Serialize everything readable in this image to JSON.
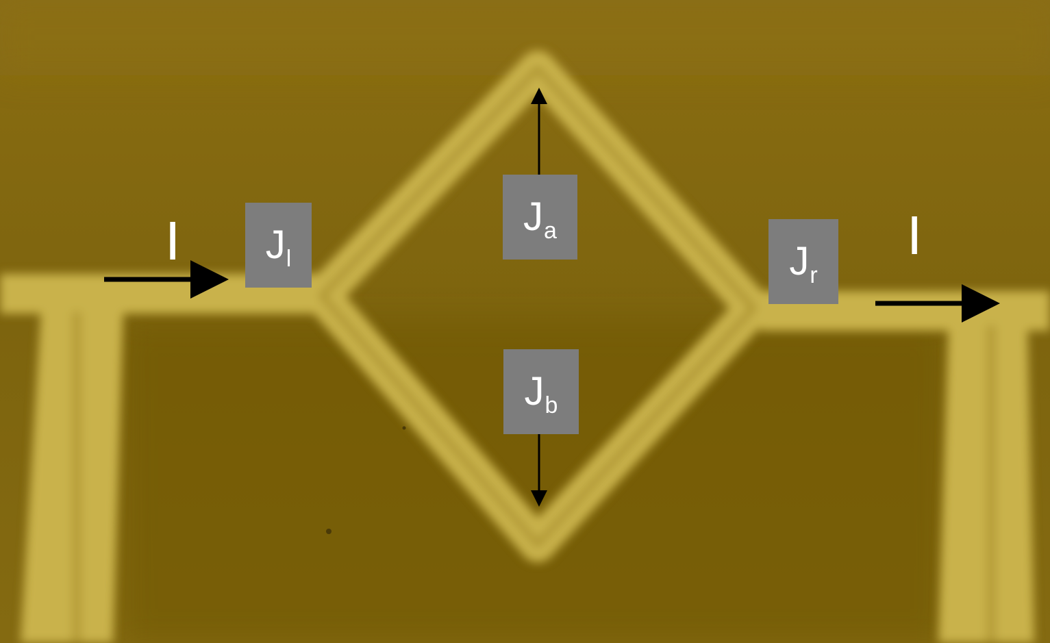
{
  "labels": {
    "jl": {
      "main": "J",
      "sub": "l"
    },
    "ja": {
      "main": "J",
      "sub": "a"
    },
    "jr": {
      "main": "J",
      "sub": "r"
    },
    "jb": {
      "main": "J",
      "sub": "b"
    }
  },
  "current_in": "I",
  "current_out": "I",
  "colors": {
    "background": "#7f6610",
    "wire": "#c9b24c",
    "wire_dark": "#a88d2a",
    "label_box": "#7d7d7d",
    "arrow": "#000000"
  }
}
